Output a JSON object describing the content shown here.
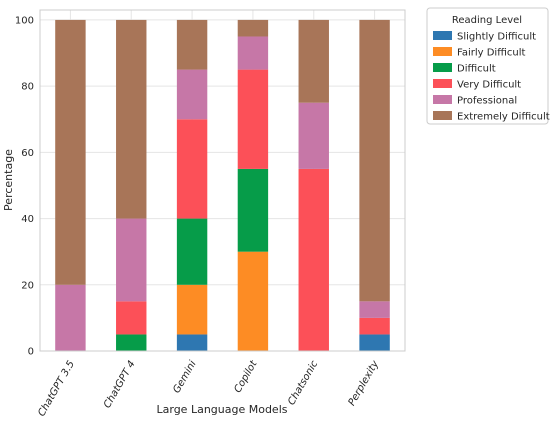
{
  "chart_data": {
    "type": "bar",
    "stacked": true,
    "categories": [
      "ChatGPT 3.5",
      "ChatGPT 4",
      "Gemini",
      "Copilot",
      "Chatsonic",
      "Perplexity"
    ],
    "series": [
      {
        "name": "Slightly Difficult",
        "color": "#2e77b1",
        "values": [
          0,
          0,
          5,
          0,
          0,
          5
        ]
      },
      {
        "name": "Fairly Difficult",
        "color": "#fd8c24",
        "values": [
          0,
          0,
          15,
          30,
          0,
          0
        ]
      },
      {
        "name": "Difficult",
        "color": "#069c49",
        "values": [
          0,
          5,
          20,
          25,
          0,
          0
        ]
      },
      {
        "name": "Very Difficult",
        "color": "#fc5058",
        "values": [
          0,
          10,
          30,
          30,
          55,
          5
        ]
      },
      {
        "name": "Professional",
        "color": "#c677a7",
        "values": [
          20,
          25,
          15,
          10,
          20,
          5
        ]
      },
      {
        "name": "Extremely Difficult",
        "color": "#a87558",
        "values": [
          80,
          60,
          15,
          5,
          25,
          85
        ]
      }
    ],
    "title": "",
    "xlabel": "Large Language Models",
    "ylabel": "Percentage",
    "ylim": [
      0,
      103
    ],
    "yticks": [
      0,
      20,
      40,
      60,
      80,
      100
    ],
    "grid": true,
    "legend": {
      "title": "Reading Level",
      "placement": "outside-top-right"
    }
  }
}
